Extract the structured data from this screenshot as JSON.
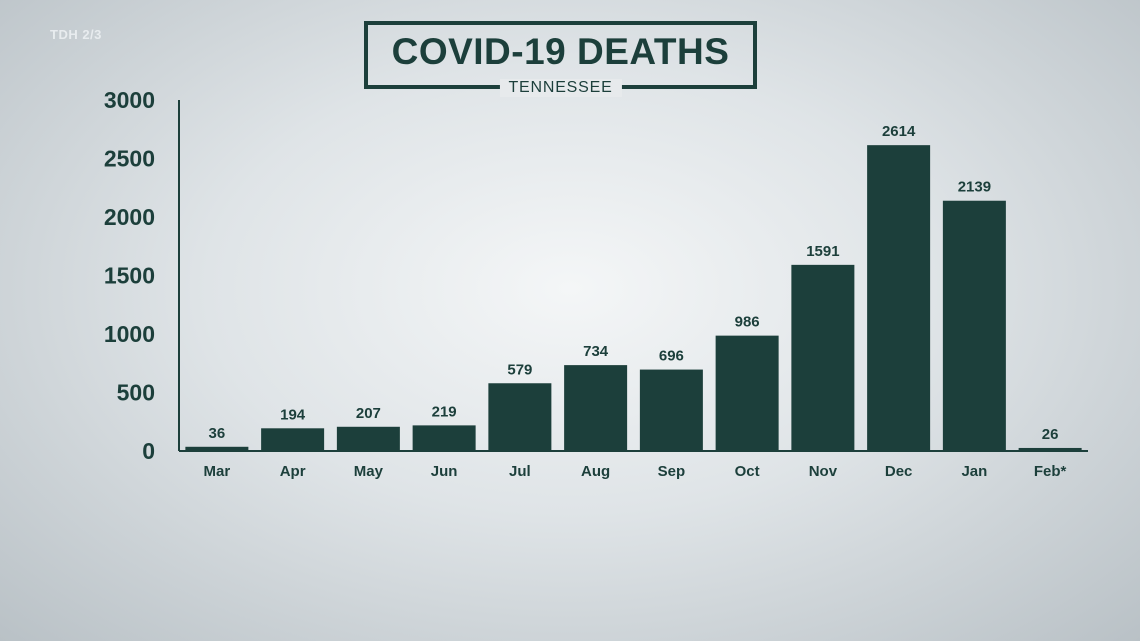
{
  "source_label": "TDH 2/3",
  "chart_data": {
    "type": "bar",
    "title": "COVID-19 DEATHS",
    "subtitle": "TENNESSEE",
    "categories": [
      "Mar",
      "Apr",
      "May",
      "Jun",
      "Jul",
      "Aug",
      "Sep",
      "Oct",
      "Nov",
      "Dec",
      "Jan",
      "Feb*"
    ],
    "values": [
      36,
      194,
      207,
      219,
      579,
      734,
      696,
      986,
      1591,
      2614,
      2139,
      26
    ],
    "y_ticks": [
      "0",
      "500",
      "1000",
      "1500",
      "2000",
      "2500",
      "3000"
    ],
    "ylim": [
      0,
      3000
    ],
    "xlabel": "",
    "ylabel": "",
    "grid": false,
    "legend": "none",
    "bar_color": "#1c3f3b",
    "text_color": "#1c3f3b"
  }
}
